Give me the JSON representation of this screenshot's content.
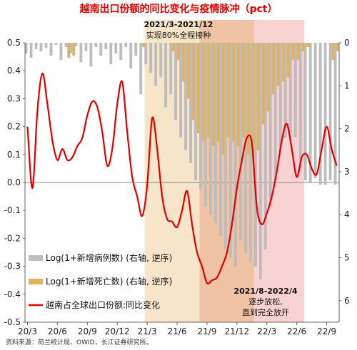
{
  "chart_data": {
    "type": "bar",
    "title": "越南出口份额的同比变化与疫情脉冲（pct）",
    "source": "资料来源：荷兰统计局、OWID，长江证券研究所。",
    "left_axis": {
      "ylim": [
        -0.5,
        0.5
      ],
      "ticks": [
        "0.5",
        "0.4",
        "0.3",
        "0.2",
        "0.1",
        "0.0",
        "-0.1",
        "-0.2",
        "-0.3",
        "-0.4",
        "-0.5"
      ]
    },
    "right_axis": {
      "ylim": [
        0,
        6.5
      ],
      "inverted": true,
      "ticks": [
        "0",
        "1",
        "2",
        "3",
        "4",
        "5",
        "6"
      ]
    },
    "x_tick_labels": [
      "20/3",
      "20/6",
      "20/9",
      "20/12",
      "21/3",
      "21/6",
      "21/9",
      "21/12",
      "22/3",
      "22/6",
      "22/9"
    ],
    "x_tick_index": [
      0,
      6,
      12,
      18,
      24,
      30,
      36,
      42,
      48,
      54,
      60
    ],
    "shaded_periods": [
      {
        "from": 24,
        "to": 35,
        "color": "#f6e5c8",
        "label_lines": [
          "2021/3-2021/12",
          "实现80%全程接种"
        ]
      },
      {
        "from": 35,
        "to": 46,
        "color": "#f0c3a4"
      },
      {
        "from": 46,
        "to": 56,
        "color": "#f9d2d4",
        "label_lines": [
          "2021/8-2022/4",
          "逐步放松,",
          "直到完全放开"
        ]
      }
    ],
    "series": [
      {
        "name": "Log(1+新增病例数) (右轴, 逆序)",
        "type": "bar",
        "axis": "right",
        "color": "#bdbdbd",
        "values": [
          0.25,
          0.35,
          0.15,
          0.2,
          0.12,
          0.3,
          0.05,
          0.4,
          0.1,
          0.25,
          0.08,
          0.45,
          0.2,
          0.55,
          0.1,
          0.3,
          0.15,
          0.5,
          0.25,
          0.4,
          0.1,
          0.6,
          0.3,
          1.2,
          0.5,
          0.7,
          1.0,
          0.8,
          1.5,
          1.2,
          1.8,
          2.2,
          2.5,
          2.8,
          3.2,
          3.4,
          3.8,
          4.0,
          4.2,
          4.5,
          4.8,
          5.0,
          5.2,
          4.6,
          4.9,
          5.1,
          5.2,
          5.5,
          4.8,
          3.8,
          3.2,
          2.5,
          2.2,
          2.1,
          2.2,
          3.0,
          3.2,
          3.25,
          3.15,
          3.3,
          3.3,
          3.2,
          3.3
        ]
      },
      {
        "name": "Log(1+新增死亡数) (右轴, 逆序)",
        "type": "bar",
        "axis": "right",
        "color": "#e2b262",
        "values": [
          0,
          0,
          0,
          0,
          0,
          0,
          0,
          0,
          0.35,
          0.3,
          0,
          0,
          0,
          0,
          0,
          0,
          0,
          0,
          0,
          0,
          0,
          0,
          0,
          0.1,
          0,
          0,
          0,
          0,
          0,
          0.2,
          0.4,
          0.9,
          1.3,
          1.8,
          2.1,
          2.3,
          2.2,
          2.4,
          2.3,
          2.6,
          2.2,
          2.3,
          2.4,
          2.2,
          2.6,
          2.8,
          2.5,
          1.9,
          1.6,
          1.2,
          1.0,
          0.9,
          0.8,
          0.4,
          0.4,
          0.2,
          0.1,
          0,
          0,
          0,
          0,
          0.4,
          0.2
        ]
      },
      {
        "name": "越南占全球出口份额:同比变化",
        "type": "line",
        "axis": "left",
        "color": "#e00000",
        "values": [
          0.2,
          -0.02,
          0.26,
          0.39,
          0.28,
          0.15,
          0.08,
          0.12,
          0.08,
          0.09,
          0.13,
          0.16,
          0.24,
          0.29,
          0.27,
          0.18,
          0.06,
          0.12,
          0.28,
          0.36,
          0.18,
          0.02,
          -0.05,
          -0.12,
          -0.01,
          0.23,
          0.12,
          -0.05,
          -0.13,
          -0.14,
          -0.16,
          -0.1,
          -0.03,
          -0.15,
          -0.25,
          -0.3,
          -0.36,
          -0.35,
          -0.34,
          -0.3,
          -0.25,
          -0.15,
          -0.02,
          0.08,
          0.16,
          0.14,
          -0.09,
          -0.15,
          -0.11,
          -0.05,
          0.04,
          0.15,
          0.21,
          0.12,
          0.02,
          0.09,
          0.1,
          0.05,
          0.03,
          0.12,
          0.2,
          0.12,
          0.06
        ]
      }
    ]
  }
}
